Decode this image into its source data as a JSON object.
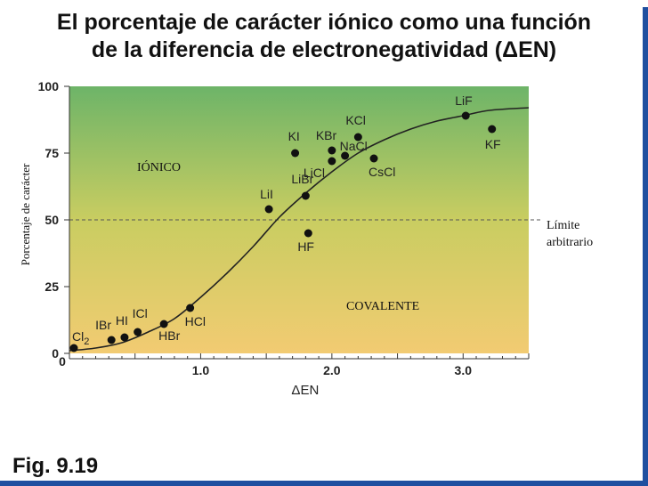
{
  "title_line1": "El porcentaje de carácter iónico como una función",
  "title_line2": "de la diferencia de electronegatividad (ΔEN)",
  "figure_label": "Fig. 9.19",
  "colors": {
    "gradient_top": "#6db468",
    "gradient_mid": "#c9cd61",
    "gradient_bottom": "#f2cb72",
    "point": "#111111",
    "curve": "#222222",
    "frame_bar": "#1f4fa0"
  },
  "chart_data": {
    "type": "scatter",
    "xlabel": "ΔEN",
    "ylabel": "Porcentaje de carácter",
    "xlim": [
      0,
      3.5
    ],
    "ylim": [
      0,
      100
    ],
    "x_ticks": [
      {
        "value": 1.0,
        "label": "1.0"
      },
      {
        "value": 2.0,
        "label": "2.0"
      },
      {
        "value": 3.0,
        "label": "3.0"
      }
    ],
    "y_ticks": [
      {
        "value": 0,
        "label": "0"
      },
      {
        "value": 25,
        "label": "25"
      },
      {
        "value": 50,
        "label": "50"
      },
      {
        "value": 75,
        "label": "75"
      },
      {
        "value": 100,
        "label": "100"
      }
    ],
    "points": [
      {
        "label": "Cl",
        "sub": "2",
        "x": 0.0,
        "y": 2
      },
      {
        "label": "IBr",
        "x": 0.32,
        "y": 5
      },
      {
        "label": "HI",
        "x": 0.42,
        "y": 6
      },
      {
        "label": "ICl",
        "x": 0.52,
        "y": 8
      },
      {
        "label": "HBr",
        "x": 0.72,
        "y": 11
      },
      {
        "label": "HCl",
        "x": 0.92,
        "y": 17
      },
      {
        "label": "LiI",
        "x": 1.52,
        "y": 54
      },
      {
        "label": "KI",
        "x": 1.72,
        "y": 75
      },
      {
        "label": "HF",
        "x": 1.82,
        "y": 45
      },
      {
        "label": "LiBr",
        "x": 1.8,
        "y": 59
      },
      {
        "label": "KBr",
        "x": 2.0,
        "y": 76
      },
      {
        "label": "LiCl",
        "x": 2.0,
        "y": 72
      },
      {
        "label": "NaCl",
        "x": 2.1,
        "y": 74
      },
      {
        "label": "KCl",
        "x": 2.2,
        "y": 81
      },
      {
        "label": "CsCl",
        "x": 2.32,
        "y": 73
      },
      {
        "label": "LiF",
        "x": 3.02,
        "y": 89
      },
      {
        "label": "KF",
        "x": 3.22,
        "y": 84
      }
    ],
    "curve": {
      "x": [
        0.0,
        0.2,
        0.4,
        0.6,
        0.8,
        1.0,
        1.2,
        1.4,
        1.6,
        1.8,
        2.0,
        2.2,
        2.4,
        2.6,
        2.8,
        3.0,
        3.2,
        3.5
      ],
      "y": [
        1,
        2,
        4,
        8,
        13,
        21,
        30,
        40,
        51,
        60,
        68,
        75,
        80,
        84,
        87,
        89,
        91,
        92
      ]
    },
    "reference_line": {
      "y": 50,
      "label_line1": "Límite",
      "label_line2": "arbitrario"
    },
    "regions": [
      {
        "label": "IÓNICO"
      },
      {
        "label": "COVALENTE"
      }
    ],
    "grid": false,
    "legend": "none"
  }
}
